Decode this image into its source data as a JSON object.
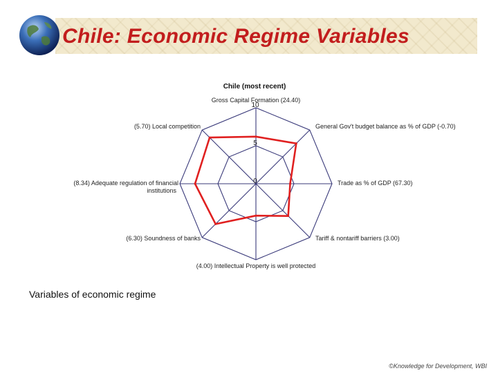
{
  "slide": {
    "title": "Chile: Economic Regime Variables",
    "subtitle": "Variables of economic regime",
    "footer": "©Knowledge for Development, WBI"
  },
  "colors": {
    "title": "#c21d1d",
    "series": "#e02020",
    "web": "#3a3a7a"
  },
  "chart_data": {
    "type": "radar",
    "title": "Chile (most recent)",
    "range": [
      0,
      10
    ],
    "rings": [
      0,
      5,
      10
    ],
    "ring_labels": [
      "0",
      "5",
      "10"
    ],
    "axes": [
      {
        "label": "Gross Capital Formation (24.40)",
        "value": 6.2
      },
      {
        "label": "General Gov't budget balance as % of GDP (-0.70)",
        "value": 7.5
      },
      {
        "label": "Trade as % of GDP (67.30)",
        "value": 4.5
      },
      {
        "label": "Tariff & nontariff barriers (3.00)",
        "value": 6.0
      },
      {
        "label": "(4.00) Intellectual Property is well protected",
        "value": 4.2
      },
      {
        "label": "(6.30) Soundness of banks",
        "value": 7.5
      },
      {
        "label": "(8.34) Adequate regulation of financial institutions",
        "value": 8.0
      },
      {
        "label": "(5.70) Local competition",
        "value": 8.6
      }
    ],
    "legend": "none"
  }
}
